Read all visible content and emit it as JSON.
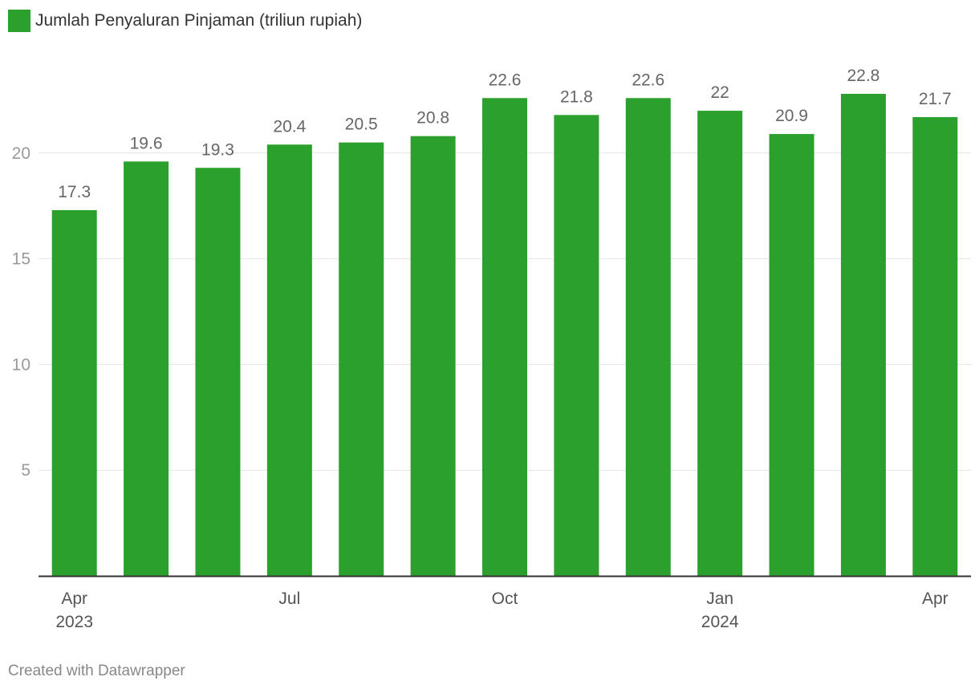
{
  "chart_data": {
    "type": "bar",
    "legend": "Jumlah Penyaluran Pinjaman (triliun rupiah)",
    "categories": [
      "Apr 2023",
      "May 2023",
      "Jun 2023",
      "Jul 2023",
      "Aug 2023",
      "Sep 2023",
      "Oct 2023",
      "Nov 2023",
      "Dec 2023",
      "Jan 2024",
      "Feb 2024",
      "Mar 2024",
      "Apr 2024"
    ],
    "values": [
      17.3,
      19.6,
      19.3,
      20.4,
      20.5,
      20.8,
      22.6,
      21.8,
      22.6,
      22,
      20.9,
      22.8,
      21.7
    ],
    "value_labels": [
      "17.3",
      "19.6",
      "19.3",
      "20.4",
      "20.5",
      "20.8",
      "22.6",
      "21.8",
      "22.6",
      "22",
      "20.9",
      "22.8",
      "21.7"
    ],
    "x_tick_labels": [
      {
        "index": 0,
        "lines": [
          "Apr",
          "2023"
        ]
      },
      {
        "index": 3,
        "lines": [
          "Jul"
        ]
      },
      {
        "index": 6,
        "lines": [
          "Oct"
        ]
      },
      {
        "index": 9,
        "lines": [
          "Jan",
          "2024"
        ]
      },
      {
        "index": 12,
        "lines": [
          "Apr"
        ]
      }
    ],
    "y_ticks": [
      5,
      10,
      15,
      20
    ],
    "ylim": [
      0,
      25
    ],
    "grid": true,
    "bar_color": "#2ca02c",
    "legend_position": "top-left"
  },
  "footer": {
    "credit": "Created with Datawrapper"
  }
}
